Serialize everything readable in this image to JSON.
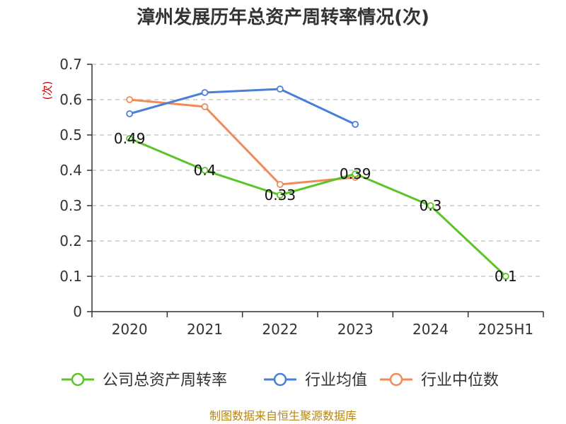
{
  "chart_data": {
    "type": "line",
    "title": "漳州发展历年总资产周转率情况(次)",
    "ylabel": "(次)",
    "xlabel": "",
    "categories": [
      "2020",
      "2021",
      "2022",
      "2023",
      "2024",
      "2025H1"
    ],
    "ylim": [
      0,
      0.7
    ],
    "yticks": [
      0,
      0.1,
      0.2,
      0.3,
      0.4,
      0.5,
      0.6,
      0.7
    ],
    "grid": true,
    "legend_position": "bottom",
    "series": [
      {
        "name": "公司总资产周转率",
        "color": "#5cc427",
        "values": [
          0.49,
          0.4,
          0.33,
          0.39,
          0.3,
          0.1
        ],
        "labels": [
          "0.49",
          "0.4",
          "0.33",
          "0.39",
          "0.3",
          "0.1"
        ]
      },
      {
        "name": "行业均值",
        "color": "#4a7fd8",
        "values": [
          0.56,
          0.62,
          0.63,
          0.53,
          null,
          null
        ]
      },
      {
        "name": "行业中位数",
        "color": "#f28a57",
        "values": [
          0.6,
          0.58,
          0.36,
          0.38,
          null,
          null
        ]
      }
    ]
  },
  "source": "制图数据来自恒生聚源数据库"
}
